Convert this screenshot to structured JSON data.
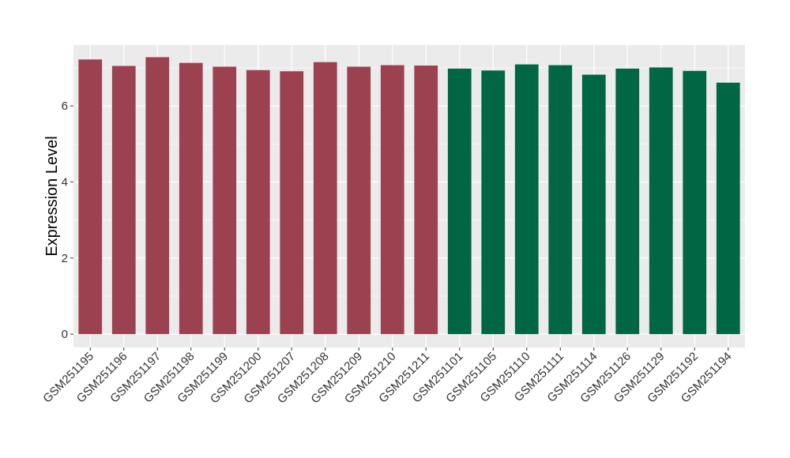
{
  "chart_data": {
    "type": "bar",
    "title": "",
    "xlabel": "",
    "ylabel": "Expression Level",
    "ylim": [
      -0.35,
      7.6
    ],
    "yticks": [
      0,
      2,
      4,
      6
    ],
    "grid": true,
    "legend": "none",
    "colors": {
      "group_a": "#9b4150",
      "group_b": "#006644",
      "panel_bg": "#ebebeb",
      "grid": "#ffffff"
    },
    "categories": [
      "GSM251195",
      "GSM251196",
      "GSM251197",
      "GSM251198",
      "GSM251199",
      "GSM251200",
      "GSM251207",
      "GSM251208",
      "GSM251209",
      "GSM251210",
      "GSM251211",
      "GSM251101",
      "GSM251105",
      "GSM251110",
      "GSM251111",
      "GSM251114",
      "GSM251126",
      "GSM251129",
      "GSM251192",
      "GSM251194"
    ],
    "values": [
      7.22,
      7.05,
      7.28,
      7.13,
      7.03,
      6.94,
      6.91,
      7.15,
      7.03,
      7.07,
      7.06,
      6.98,
      6.93,
      7.09,
      7.07,
      6.82,
      6.98,
      7.01,
      6.92,
      6.61
    ],
    "groups": [
      "group_a",
      "group_a",
      "group_a",
      "group_a",
      "group_a",
      "group_a",
      "group_a",
      "group_a",
      "group_a",
      "group_a",
      "group_a",
      "group_b",
      "group_b",
      "group_b",
      "group_b",
      "group_b",
      "group_b",
      "group_b",
      "group_b",
      "group_b"
    ]
  }
}
